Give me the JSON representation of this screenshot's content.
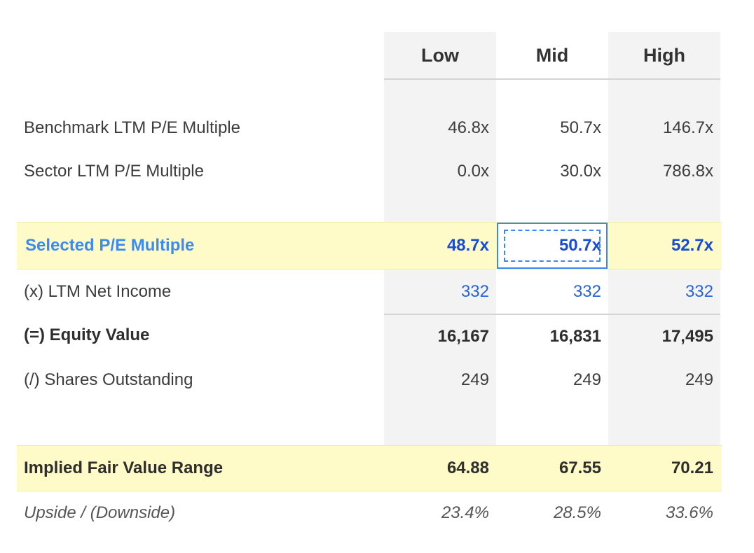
{
  "columns": [
    "Low",
    "Mid",
    "High"
  ],
  "rows": {
    "benchmark": {
      "label": "Benchmark LTM P/E Multiple",
      "values": [
        "46.8x",
        "50.7x",
        "146.7x"
      ]
    },
    "sector": {
      "label": "Sector LTM P/E Multiple",
      "values": [
        "0.0x",
        "30.0x",
        "786.8x"
      ]
    },
    "selected": {
      "label": "Selected P/E Multiple",
      "values": [
        "48.7x",
        "50.7x",
        "52.7x"
      ]
    },
    "net_income": {
      "label": "(x) LTM Net Income",
      "values": [
        "332",
        "332",
        "332"
      ]
    },
    "equity_value": {
      "label": "(=) Equity Value",
      "values": [
        "16,167",
        "16,831",
        "17,495"
      ]
    },
    "shares": {
      "label": "(/) Shares Outstanding",
      "values": [
        "249",
        "249",
        "249"
      ]
    },
    "fair_value": {
      "label": "Implied Fair Value Range",
      "values": [
        "64.88",
        "67.55",
        "70.21"
      ]
    },
    "upside": {
      "label": "Upside / (Downside)",
      "values": [
        "23.4%",
        "28.5%",
        "33.6%"
      ]
    }
  },
  "colors": {
    "highlight_band": "#fefbc8",
    "selected_label": "#3d8af7",
    "selected_values": "#1a4bd6",
    "input_values": "#2a62d8",
    "column_shade": "#f3f3f3",
    "focus_border": "#3d86f5"
  }
}
